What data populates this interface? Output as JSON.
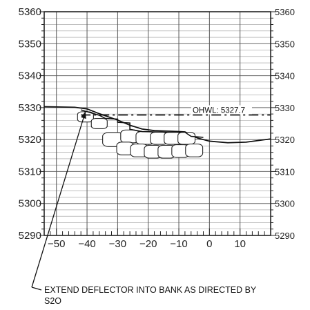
{
  "chart_data": {
    "type": "cross-section",
    "x_ticks": [
      -50,
      -40,
      -30,
      -20,
      -10,
      0,
      10
    ],
    "x_tick_labels": [
      "−50",
      "−40",
      "−30",
      "−20",
      "−10",
      "0",
      "10"
    ],
    "xlim": [
      -54,
      20
    ],
    "y_ticks": [
      5290,
      5300,
      5310,
      5320,
      5330,
      5340,
      5350,
      5360
    ],
    "y_tick_labels_left": [
      "5290",
      "5300",
      "5310",
      "5320",
      "5330",
      "5340",
      "5350",
      "5360"
    ],
    "y_tick_labels_right": [
      "5290",
      "5300",
      "5310",
      "5320",
      "5330",
      "5340",
      "5350",
      "5360"
    ],
    "ylim": [
      5290,
      5360
    ],
    "grid": true,
    "ohwl": {
      "label": "OHWL: 5327.7",
      "elevation": 5327.7,
      "x_from": -42,
      "x_to": 20
    },
    "ground_profile": {
      "x": [
        -54,
        -44,
        -40,
        -36,
        -30,
        -26,
        -22,
        -18,
        -12,
        -8,
        -4,
        0,
        6,
        12,
        20
      ],
      "y": [
        5330.3,
        5330.1,
        5329.6,
        5328.1,
        5326.1,
        5324.5,
        5323.3,
        5322.8,
        5322.6,
        5322.4,
        5320.5,
        5319.5,
        5319.0,
        5319.2,
        5320.2
      ]
    },
    "deflector_top": {
      "x": [
        -42,
        -36,
        -34,
        -30,
        -30,
        -26,
        -26,
        -22,
        -14,
        -8,
        -6,
        -2
      ],
      "y": [
        5329.3,
        5327.6,
        5326.6,
        5326.4,
        5325.4,
        5325.2,
        5323.2,
        5322.5,
        5322.3,
        5322.3,
        5321.0,
        5320.7
      ]
    },
    "boulders": [
      {
        "x": -40.5,
        "y": 5327.1,
        "rx": 2.6,
        "ry": 1.6
      },
      {
        "x": -36.0,
        "y": 5325.0,
        "rx": 2.6,
        "ry": 1.6
      },
      {
        "x": -31.5,
        "y": 5320.0,
        "rx": 3.4,
        "ry": 2.2
      },
      {
        "x": -26.0,
        "y": 5321.0,
        "rx": 3.0,
        "ry": 2.0
      },
      {
        "x": -21.0,
        "y": 5320.5,
        "rx": 3.0,
        "ry": 2.0
      },
      {
        "x": -16.5,
        "y": 5320.4,
        "rx": 2.8,
        "ry": 1.9
      },
      {
        "x": -12.0,
        "y": 5320.4,
        "rx": 2.8,
        "ry": 1.9
      },
      {
        "x": -7.5,
        "y": 5320.4,
        "rx": 2.8,
        "ry": 1.9
      },
      {
        "x": -27.5,
        "y": 5317.2,
        "rx": 2.8,
        "ry": 2.0
      },
      {
        "x": -23.0,
        "y": 5316.6,
        "rx": 2.8,
        "ry": 2.0
      },
      {
        "x": -18.5,
        "y": 5316.2,
        "rx": 2.8,
        "ry": 2.0
      },
      {
        "x": -14.0,
        "y": 5316.2,
        "rx": 2.8,
        "ry": 2.0
      },
      {
        "x": -9.5,
        "y": 5316.4,
        "rx": 2.8,
        "ry": 2.0
      },
      {
        "x": -5.0,
        "y": 5316.6,
        "rx": 2.8,
        "ry": 2.0
      }
    ],
    "callout": {
      "lines": [
        "EXTEND DEFLECTOR INTO BANK AS DIRECTED BY",
        "S2O"
      ],
      "arrow_tip": {
        "x": -40.5,
        "y": 5328.8
      }
    }
  }
}
